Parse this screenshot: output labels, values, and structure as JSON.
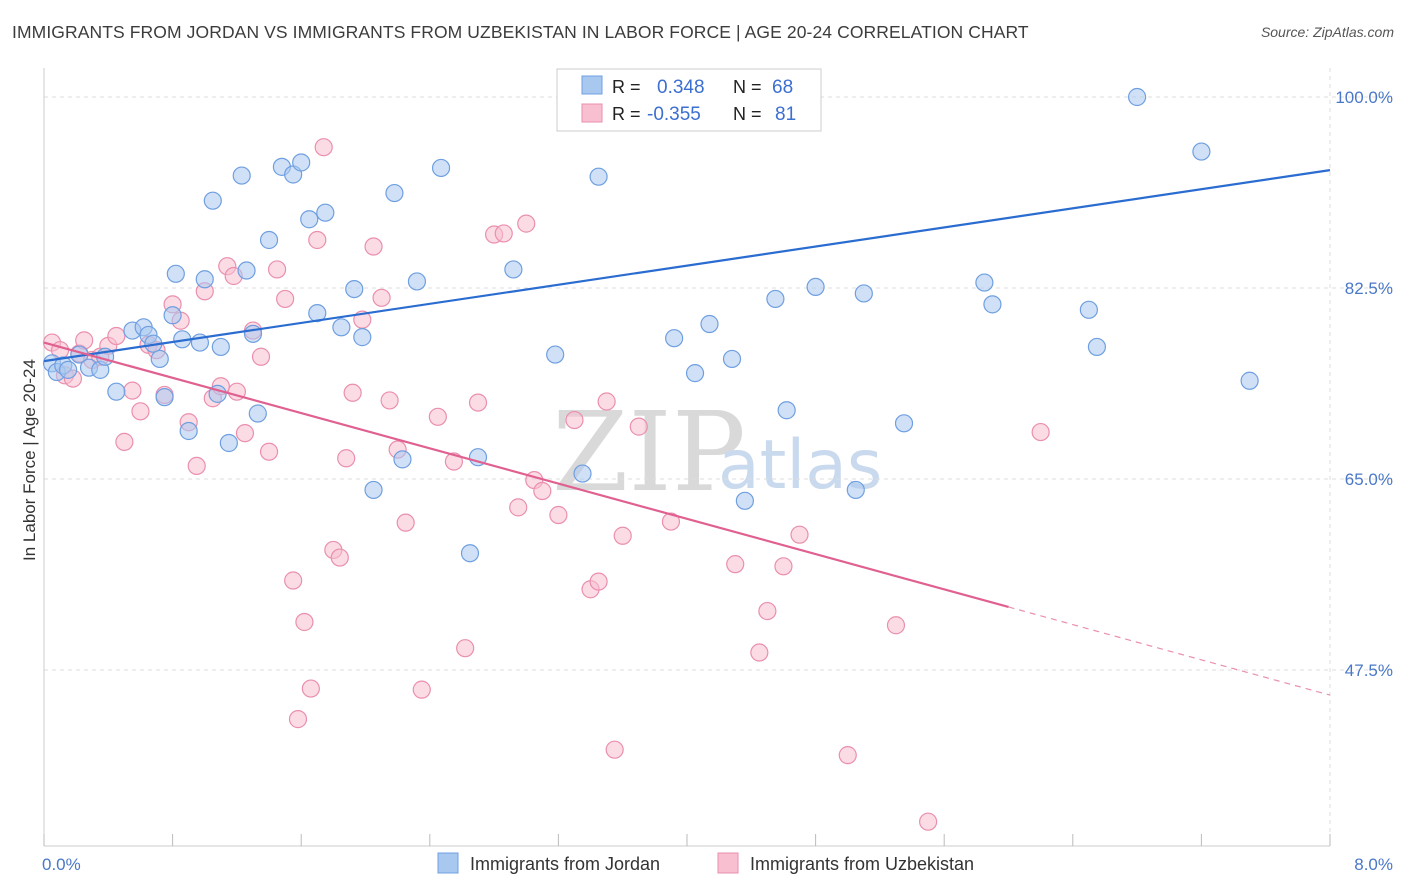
{
  "title": "IMMIGRANTS FROM JORDAN VS IMMIGRANTS FROM UZBEKISTAN IN LABOR FORCE | AGE 20-24 CORRELATION CHART",
  "source": "Source: ZipAtlas.com",
  "watermark": {
    "zip": "ZIP",
    "atlas": "atlas"
  },
  "colors": {
    "jordan_fill": "#a9c8f0",
    "jordan_stroke": "#6f9fe0",
    "jordan_line": "#2a6cd0",
    "uzbek_fill": "#f7bfd0",
    "uzbek_stroke": "#ea8fae",
    "uzbek_line": "#e06090",
    "tick_text": "#4a78c8",
    "grid": "#dddddd"
  },
  "legend": {
    "r_label": "R =",
    "n_label": "N =",
    "jordan": {
      "r": "0.348",
      "n": "68"
    },
    "uzbek": {
      "r": "-0.355",
      "n": "81"
    }
  },
  "bottom_legend": {
    "jordan": "Immigrants from Jordan",
    "uzbek": "Immigrants from Uzbekistan"
  },
  "chart_data": {
    "type": "scatter",
    "title": "IMMIGRANTS FROM JORDAN VS IMMIGRANTS FROM UZBEKISTAN IN LABOR FORCE | AGE 20-24 CORRELATION CHART",
    "xlabel": "",
    "ylabel": "In Labor Force | Age 20-24",
    "xlim": [
      0.0,
      8.0
    ],
    "ylim": [
      31.0,
      102.0
    ],
    "x_tick_labels": [
      "0.0%",
      "8.0%"
    ],
    "y_ticks": [
      47.5,
      65.0,
      82.5,
      100.0
    ],
    "y_tick_labels": [
      "47.5%",
      "65.0%",
      "82.5%",
      "100.0%"
    ],
    "grid": true,
    "legend_position": "top-center",
    "series": [
      {
        "name": "Immigrants from Jordan",
        "r": 0.348,
        "n": 68,
        "trend": {
          "x": [
            0.0,
            8.0
          ],
          "y": [
            75.8,
            93.3
          ],
          "dashed_from": null
        },
        "points": [
          [
            0.05,
            75.6
          ],
          [
            0.08,
            74.8
          ],
          [
            0.12,
            75.4
          ],
          [
            0.15,
            75.0
          ],
          [
            0.22,
            76.4
          ],
          [
            0.28,
            75.2
          ],
          [
            0.35,
            75.0
          ],
          [
            0.38,
            76.2
          ],
          [
            0.45,
            73.0
          ],
          [
            0.55,
            78.6
          ],
          [
            0.62,
            78.9
          ],
          [
            0.65,
            78.2
          ],
          [
            0.68,
            77.4
          ],
          [
            0.72,
            76.0
          ],
          [
            0.75,
            72.5
          ],
          [
            0.8,
            80.0
          ],
          [
            0.82,
            83.8
          ],
          [
            0.86,
            77.8
          ],
          [
            0.9,
            69.4
          ],
          [
            0.97,
            77.5
          ],
          [
            1.0,
            83.3
          ],
          [
            1.05,
            90.5
          ],
          [
            1.08,
            72.8
          ],
          [
            1.1,
            77.1
          ],
          [
            1.15,
            68.3
          ],
          [
            1.23,
            92.8
          ],
          [
            1.26,
            84.1
          ],
          [
            1.3,
            78.3
          ],
          [
            1.33,
            71.0
          ],
          [
            1.4,
            86.9
          ],
          [
            1.48,
            93.6
          ],
          [
            1.55,
            92.9
          ],
          [
            1.6,
            94.0
          ],
          [
            1.65,
            88.8
          ],
          [
            1.7,
            80.2
          ],
          [
            1.75,
            89.4
          ],
          [
            1.85,
            78.9
          ],
          [
            1.93,
            82.4
          ],
          [
            1.98,
            78.0
          ],
          [
            2.05,
            64.0
          ],
          [
            2.18,
            91.2
          ],
          [
            2.23,
            66.8
          ],
          [
            2.32,
            83.1
          ],
          [
            2.47,
            93.5
          ],
          [
            2.65,
            58.2
          ],
          [
            2.7,
            67.0
          ],
          [
            2.92,
            84.2
          ],
          [
            3.18,
            76.4
          ],
          [
            3.35,
            65.5
          ],
          [
            3.45,
            92.7
          ],
          [
            3.92,
            77.9
          ],
          [
            4.05,
            74.7
          ],
          [
            4.14,
            79.2
          ],
          [
            4.28,
            76.0
          ],
          [
            4.36,
            63.0
          ],
          [
            4.55,
            81.5
          ],
          [
            4.62,
            71.3
          ],
          [
            4.8,
            82.6
          ],
          [
            5.05,
            64.0
          ],
          [
            5.1,
            82.0
          ],
          [
            5.35,
            70.1
          ],
          [
            5.85,
            83.0
          ],
          [
            5.9,
            81.0
          ],
          [
            6.5,
            80.5
          ],
          [
            6.55,
            77.1
          ],
          [
            6.8,
            100.0
          ],
          [
            7.2,
            95.0
          ],
          [
            7.5,
            74.0
          ]
        ]
      },
      {
        "name": "Immigrants from Uzbekistan",
        "r": -0.355,
        "n": 81,
        "trend": {
          "x": [
            0.0,
            8.0
          ],
          "y": [
            77.5,
            45.2
          ],
          "dashed_from": 6.0
        },
        "points": [
          [
            0.05,
            77.5
          ],
          [
            0.1,
            76.8
          ],
          [
            0.13,
            74.5
          ],
          [
            0.18,
            74.2
          ],
          [
            0.22,
            76.5
          ],
          [
            0.25,
            77.7
          ],
          [
            0.3,
            75.9
          ],
          [
            0.35,
            76.2
          ],
          [
            0.4,
            77.2
          ],
          [
            0.45,
            78.1
          ],
          [
            0.5,
            68.4
          ],
          [
            0.55,
            73.1
          ],
          [
            0.6,
            71.2
          ],
          [
            0.65,
            77.3
          ],
          [
            0.7,
            76.8
          ],
          [
            0.75,
            72.7
          ],
          [
            0.8,
            81.0
          ],
          [
            0.85,
            79.5
          ],
          [
            0.9,
            70.2
          ],
          [
            0.95,
            66.2
          ],
          [
            1.0,
            82.2
          ],
          [
            1.05,
            72.4
          ],
          [
            1.1,
            73.5
          ],
          [
            1.14,
            84.5
          ],
          [
            1.18,
            83.6
          ],
          [
            1.2,
            73.0
          ],
          [
            1.25,
            69.2
          ],
          [
            1.3,
            78.6
          ],
          [
            1.35,
            76.2
          ],
          [
            1.4,
            67.5
          ],
          [
            1.45,
            84.2
          ],
          [
            1.5,
            81.5
          ],
          [
            1.55,
            55.7
          ],
          [
            1.58,
            43.0
          ],
          [
            1.62,
            51.9
          ],
          [
            1.66,
            45.8
          ],
          [
            1.7,
            86.9
          ],
          [
            1.74,
            95.4
          ],
          [
            1.8,
            58.5
          ],
          [
            1.84,
            57.8
          ],
          [
            1.88,
            66.9
          ],
          [
            1.92,
            72.9
          ],
          [
            1.98,
            79.6
          ],
          [
            2.05,
            86.3
          ],
          [
            2.1,
            81.6
          ],
          [
            2.15,
            72.2
          ],
          [
            2.2,
            67.7
          ],
          [
            2.25,
            61.0
          ],
          [
            2.35,
            45.7
          ],
          [
            2.45,
            70.7
          ],
          [
            2.55,
            66.6
          ],
          [
            2.62,
            49.5
          ],
          [
            2.7,
            72.0
          ],
          [
            2.8,
            87.4
          ],
          [
            2.86,
            87.5
          ],
          [
            2.95,
            62.4
          ],
          [
            3.0,
            88.4
          ],
          [
            3.05,
            64.9
          ],
          [
            3.1,
            63.9
          ],
          [
            3.2,
            61.7
          ],
          [
            3.3,
            70.4
          ],
          [
            3.4,
            54.9
          ],
          [
            3.45,
            55.6
          ],
          [
            3.5,
            72.1
          ],
          [
            3.55,
            40.2
          ],
          [
            3.6,
            59.8
          ],
          [
            3.7,
            69.8
          ],
          [
            3.8,
            98.6
          ],
          [
            3.9,
            61.1
          ],
          [
            3.95,
            99.0
          ],
          [
            4.1,
            99.8
          ],
          [
            4.2,
            100.0
          ],
          [
            4.3,
            57.2
          ],
          [
            4.45,
            49.1
          ],
          [
            4.5,
            52.9
          ],
          [
            4.6,
            57.0
          ],
          [
            4.7,
            59.9
          ],
          [
            5.0,
            39.7
          ],
          [
            5.3,
            51.6
          ],
          [
            5.5,
            33.6
          ],
          [
            6.2,
            69.3
          ]
        ]
      }
    ]
  }
}
